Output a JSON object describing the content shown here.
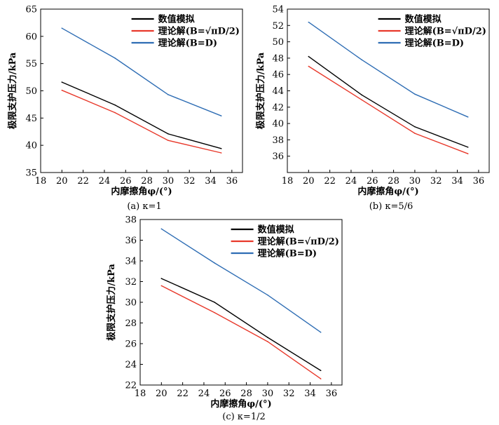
{
  "chart_data": [
    {
      "type": "line",
      "caption": "(a) κ=1",
      "xlabel": "内摩擦角φ/(°)",
      "ylabel": "极限支护压力/kPa",
      "xlim": [
        18,
        37
      ],
      "ylim": [
        35,
        65
      ],
      "xticks": [
        18,
        20,
        22,
        24,
        26,
        28,
        30,
        32,
        34,
        36
      ],
      "yticks": [
        35,
        40,
        45,
        50,
        55,
        60,
        65
      ],
      "x": [
        20,
        25,
        30,
        35
      ],
      "legend_position": "top-right",
      "series": [
        {
          "name": "数值模拟",
          "color": "#000000",
          "values": [
            51.6,
            47.4,
            42.1,
            39.4
          ]
        },
        {
          "name": "理论解(B=√πD/2)",
          "color": "#e8392b",
          "values": [
            50.1,
            46.0,
            40.9,
            38.6
          ]
        },
        {
          "name": "理论解(B=D)",
          "color": "#2e6db4",
          "values": [
            61.5,
            56.0,
            49.3,
            45.4
          ]
        }
      ]
    },
    {
      "type": "line",
      "caption": "(b) κ=5/6",
      "xlabel": "内摩擦角φ/(°)",
      "ylabel": "极限支护压力/kPa",
      "xlim": [
        18,
        37
      ],
      "ylim": [
        34,
        54
      ],
      "xticks": [
        18,
        20,
        22,
        24,
        26,
        28,
        30,
        32,
        34,
        36
      ],
      "yticks": [
        36,
        38,
        40,
        42,
        44,
        46,
        48,
        50,
        52,
        54
      ],
      "x": [
        20,
        25,
        30,
        35
      ],
      "legend_position": "top-right",
      "series": [
        {
          "name": "数值模拟",
          "color": "#000000",
          "values": [
            48.2,
            43.5,
            39.6,
            37.1
          ]
        },
        {
          "name": "理论解(B=√πD/2)",
          "color": "#e8392b",
          "values": [
            47.0,
            42.9,
            38.8,
            36.3
          ]
        },
        {
          "name": "理论解(B=D)",
          "color": "#2e6db4",
          "values": [
            52.4,
            47.8,
            43.6,
            40.8
          ]
        }
      ]
    },
    {
      "type": "line",
      "caption": "(c) κ=1/2",
      "xlabel": "内摩擦角φ/(°)",
      "ylabel": "极限支护压力/kPa",
      "xlim": [
        18,
        37
      ],
      "ylim": [
        22,
        38
      ],
      "xticks": [
        18,
        20,
        22,
        24,
        26,
        28,
        30,
        32,
        34,
        36
      ],
      "yticks": [
        22,
        24,
        26,
        28,
        30,
        32,
        34,
        36,
        38
      ],
      "x": [
        20,
        25,
        30,
        35
      ],
      "legend_position": "top-right",
      "series": [
        {
          "name": "数值模拟",
          "color": "#000000",
          "values": [
            32.3,
            30.0,
            26.6,
            23.4
          ]
        },
        {
          "name": "理论解(B=√πD/2)",
          "color": "#e8392b",
          "values": [
            31.6,
            29.0,
            26.2,
            22.6
          ]
        },
        {
          "name": "理论解(B=D)",
          "color": "#2e6db4",
          "values": [
            37.1,
            33.8,
            30.7,
            27.1
          ]
        }
      ]
    }
  ]
}
